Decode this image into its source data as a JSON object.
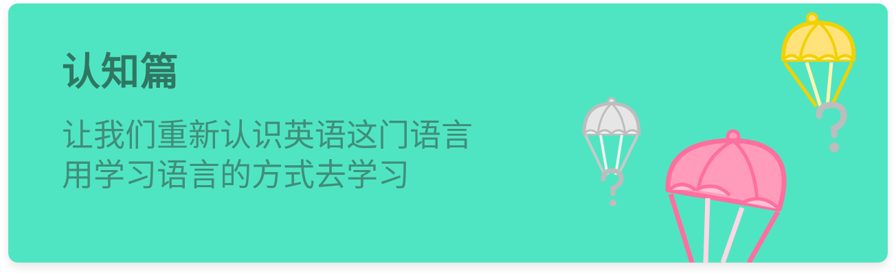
{
  "card": {
    "title": "认知篇",
    "subtitle_lines": [
      "让我们重新认识英语这门语言",
      "用学习语言的方式去学习"
    ]
  },
  "colors": {
    "card_background": "#50e5c2",
    "title_text": "#2f7663",
    "subtitle_text": "#3f8e7a",
    "parachute_gray": "#d8d8d8",
    "parachute_yellow": "#ffe27a",
    "parachute_pink": "#ff9cbb"
  },
  "icons": [
    "parachute-gray-icon",
    "parachute-yellow-icon",
    "parachute-pink-icon",
    "question-mark-icon"
  ]
}
